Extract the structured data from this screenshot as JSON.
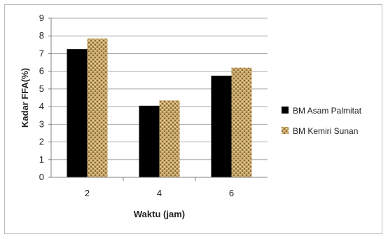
{
  "chart_data": {
    "type": "bar",
    "categories": [
      "2",
      "4",
      "6"
    ],
    "series": [
      {
        "name": "BM Asam Palmitat",
        "values": [
          7.25,
          4.05,
          5.75
        ],
        "color": "#000000"
      },
      {
        "name": "BM Kemiri Sunan",
        "values": [
          7.85,
          4.35,
          6.2
        ],
        "color": "#c8a96b"
      }
    ],
    "xlabel": "Waktu (jam)",
    "ylabel": "Kadar FFA(%)",
    "ylim": [
      0,
      9
    ],
    "yticks": [
      0,
      1,
      2,
      3,
      4,
      5,
      6,
      7,
      8,
      9
    ],
    "grid": true,
    "legend_position": "right"
  }
}
